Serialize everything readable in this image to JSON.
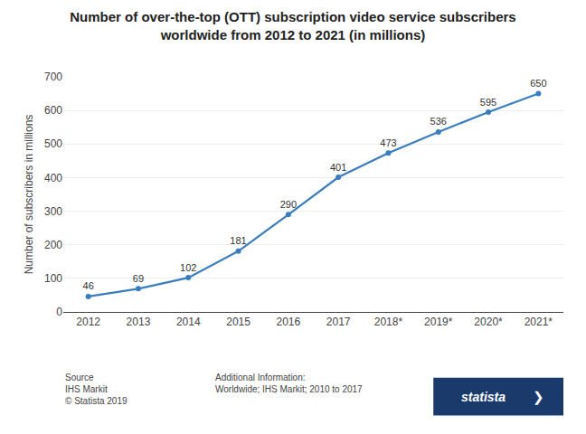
{
  "chart_data": {
    "type": "line",
    "title": "Number of over-the-top (OTT) subscription video service subscribers\nworldwide from 2012 to 2021 (in millions)",
    "categories": [
      "2012",
      "2013",
      "2014",
      "2015",
      "2016",
      "2017",
      "2018*",
      "2019*",
      "2020*",
      "2021*"
    ],
    "values": [
      46,
      69,
      102,
      181,
      290,
      401,
      473,
      536,
      595,
      650
    ],
    "ylabel": "Number of subscribers in millions",
    "ylim": [
      0,
      700
    ],
    "yticks": [
      0,
      100,
      200,
      300,
      400,
      500,
      600,
      700
    ],
    "color": "#3a7dbf",
    "marker": "circle",
    "grid": true,
    "data_labels": true,
    "annotations": [
      "Source\nIHS Markit\n© Statista 2019",
      "Additional Information:\nWorldwide; IHS Markit; 2010 to 2017",
      "statista",
      "❯"
    ]
  }
}
